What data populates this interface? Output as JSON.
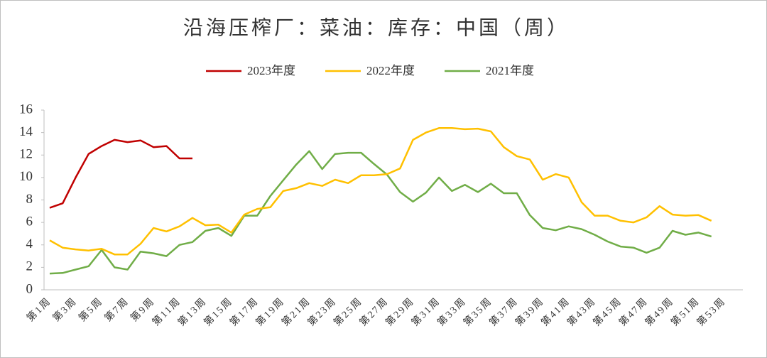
{
  "chart_data": {
    "type": "line",
    "title": "沿海压榨厂：菜油：库存：中国（周）",
    "categories": [
      "第1周",
      null,
      "第3周",
      null,
      "第5周",
      null,
      "第7周",
      null,
      "第9周",
      null,
      "第11周",
      null,
      "第13周",
      null,
      "第15周",
      null,
      "第17周",
      null,
      "第19周",
      null,
      "第21周",
      null,
      "第23周",
      null,
      "第25周",
      null,
      "第27周",
      null,
      "第29周",
      null,
      "第31周",
      null,
      "第33周",
      null,
      "第35周",
      null,
      "第37周",
      null,
      "第39周",
      null,
      "第41周",
      null,
      "第43周",
      null,
      "第45周",
      null,
      "第47周",
      null,
      "第49周",
      null,
      "第51周",
      null,
      "第53周"
    ],
    "series": [
      {
        "name": "2023年度",
        "color": "#c00000",
        "values": [
          7.3,
          7.7,
          10.0,
          12.1,
          12.8,
          13.35,
          13.15,
          13.3,
          12.7,
          12.8,
          11.7,
          11.7,
          null,
          null,
          null,
          null,
          null,
          null,
          null,
          null,
          null,
          null,
          null,
          null,
          null,
          null,
          null,
          null,
          null,
          null,
          null,
          null,
          null,
          null,
          null,
          null,
          null,
          null,
          null,
          null,
          null,
          null,
          null,
          null,
          null,
          null,
          null,
          null,
          null,
          null,
          null,
          null,
          null
        ]
      },
      {
        "name": "2022年度",
        "color": "#ffc000",
        "values": [
          4.4,
          3.75,
          3.6,
          3.5,
          3.65,
          3.15,
          3.15,
          4.1,
          5.5,
          5.2,
          5.65,
          6.4,
          5.75,
          5.8,
          5.1,
          6.7,
          7.2,
          7.35,
          8.8,
          9.05,
          9.5,
          9.25,
          9.8,
          9.5,
          10.2,
          10.2,
          10.3,
          10.8,
          13.35,
          14.0,
          14.4,
          14.4,
          14.3,
          14.35,
          14.1,
          12.7,
          11.9,
          11.6,
          9.8,
          10.3,
          10.0,
          7.8,
          6.6,
          6.6,
          6.15,
          6.0,
          6.45,
          7.45,
          6.7,
          6.6,
          6.65,
          6.15,
          null
        ]
      },
      {
        "name": "2021年度",
        "color": "#70ad47",
        "values": [
          1.45,
          1.5,
          1.8,
          2.1,
          3.55,
          2.0,
          1.8,
          3.4,
          3.25,
          3.0,
          4.0,
          4.25,
          5.25,
          5.5,
          4.8,
          6.6,
          6.6,
          8.35,
          9.75,
          11.15,
          12.35,
          10.75,
          12.1,
          12.2,
          12.2,
          11.2,
          10.25,
          8.7,
          7.85,
          8.65,
          10.0,
          8.8,
          9.35,
          8.7,
          9.45,
          8.6,
          8.6,
          6.65,
          5.5,
          5.3,
          5.65,
          5.4,
          4.9,
          4.3,
          3.85,
          3.75,
          3.3,
          3.75,
          5.25,
          4.9,
          5.1,
          4.75,
          null
        ]
      }
    ],
    "ylim": [
      0,
      16
    ],
    "yticks": [
      0,
      2,
      4,
      6,
      8,
      10,
      12,
      14,
      16
    ],
    "grid": false,
    "legend": "top"
  }
}
